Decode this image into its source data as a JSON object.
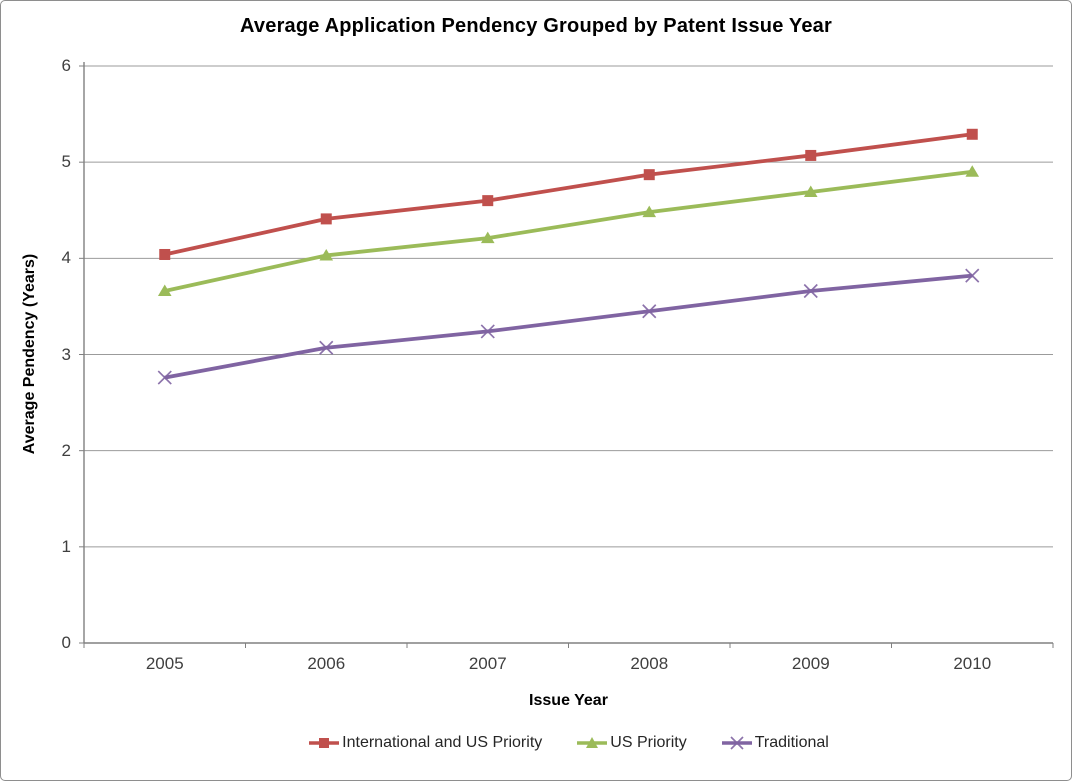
{
  "chart_data": {
    "type": "line",
    "title": "Average Application Pendency Grouped by Patent Issue Year",
    "xlabel": "Issue Year",
    "ylabel": "Average Pendency (Years)",
    "categories": [
      "2005",
      "2006",
      "2007",
      "2008",
      "2009",
      "2010"
    ],
    "series": [
      {
        "name": "International and US Priority",
        "marker": "square",
        "color": "#c0504d",
        "values": [
          4.04,
          4.41,
          4.6,
          4.87,
          5.07,
          5.29
        ]
      },
      {
        "name": "US Priority",
        "marker": "triangle",
        "color": "#9bbb59",
        "values": [
          3.66,
          4.03,
          4.21,
          4.48,
          4.69,
          4.9
        ]
      },
      {
        "name": "Traditional",
        "marker": "x",
        "color": "#8064a2",
        "values": [
          2.76,
          3.07,
          3.24,
          3.45,
          3.66,
          3.82
        ]
      }
    ],
    "ylim": [
      0,
      6
    ],
    "y_ticks": [
      0,
      1,
      2,
      3,
      4,
      5,
      6
    ],
    "grid": true,
    "legend_position": "bottom",
    "gridline_color": "#9b9b9b",
    "axis_color": "#808080"
  }
}
